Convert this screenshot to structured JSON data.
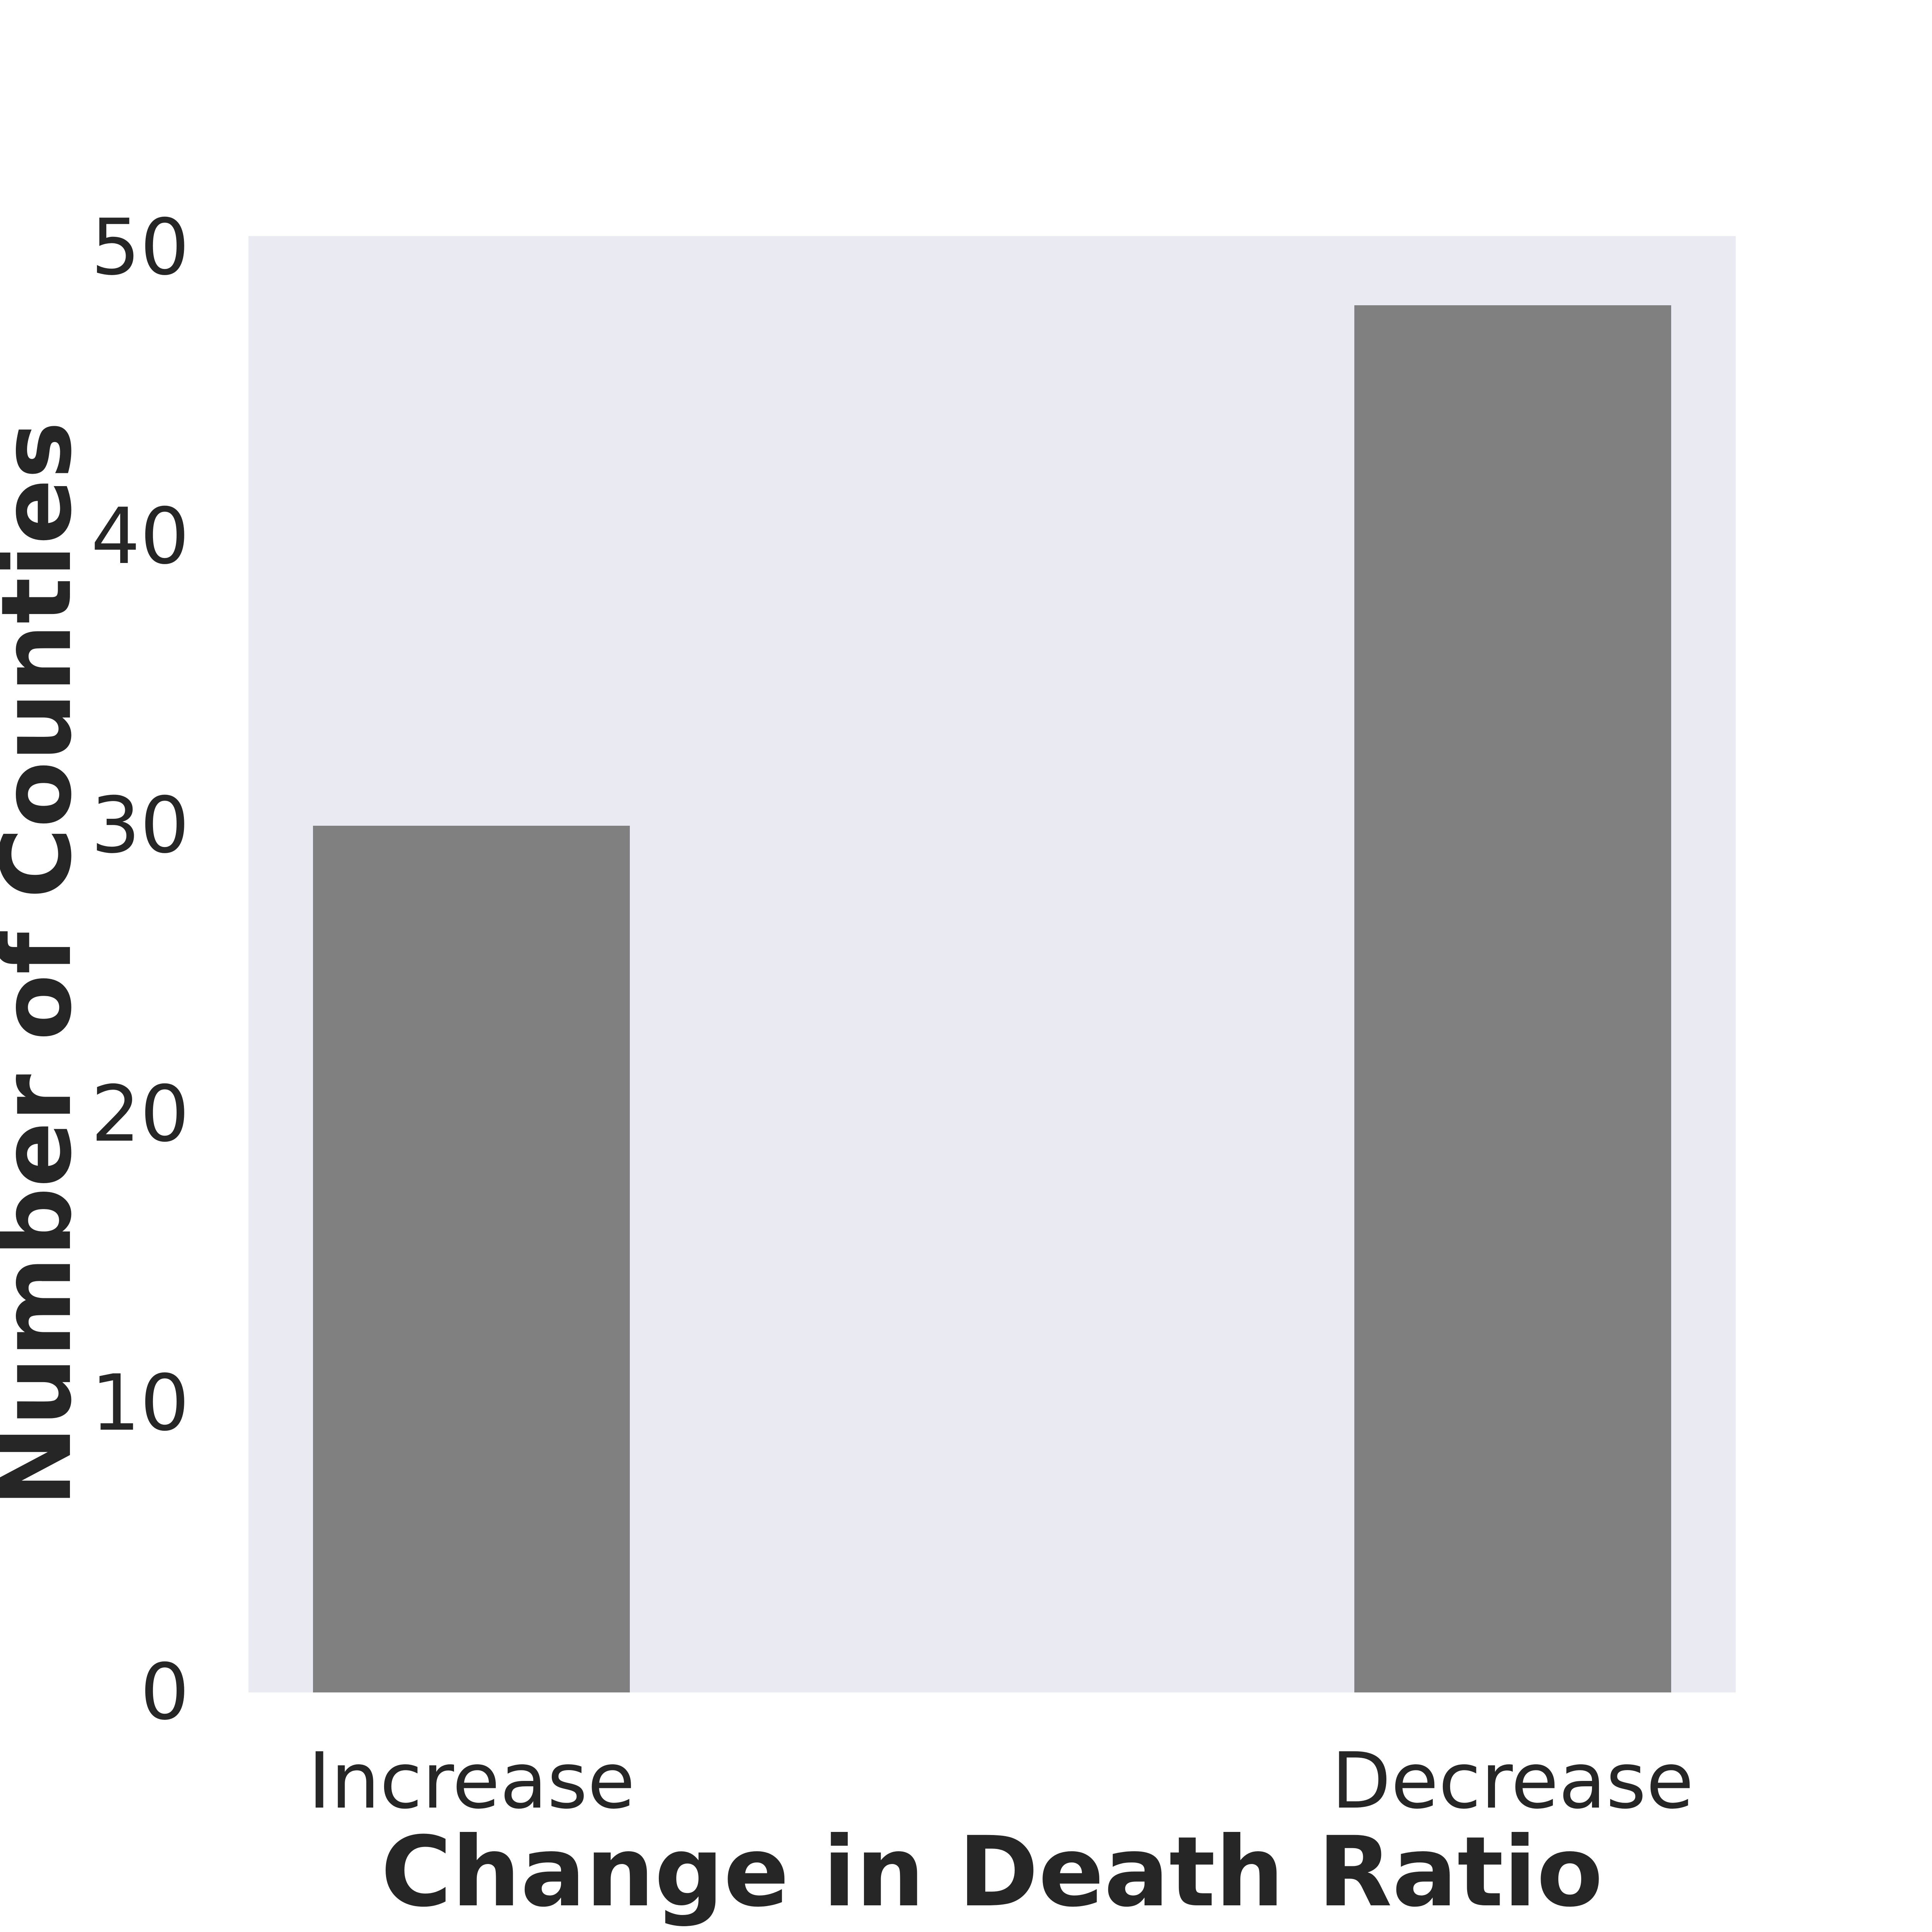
{
  "chart_data": {
    "type": "bar",
    "categories": [
      "Increase",
      "Decrease"
    ],
    "values": [
      30,
      48
    ],
    "title": "",
    "xlabel": "Change in Death Ratio",
    "ylabel": "Number of Counties",
    "yticks": [
      0,
      10,
      20,
      30,
      40,
      50
    ],
    "ylim": [
      0,
      50.4
    ],
    "grid": false,
    "legend_position": "none",
    "bar_color": "#808080",
    "plot_bg_color": "#eaeaf2",
    "text_color": "#262626",
    "bar_center_fracs": [
      0.15,
      0.85
    ],
    "bar_width_frac": 0.213
  }
}
